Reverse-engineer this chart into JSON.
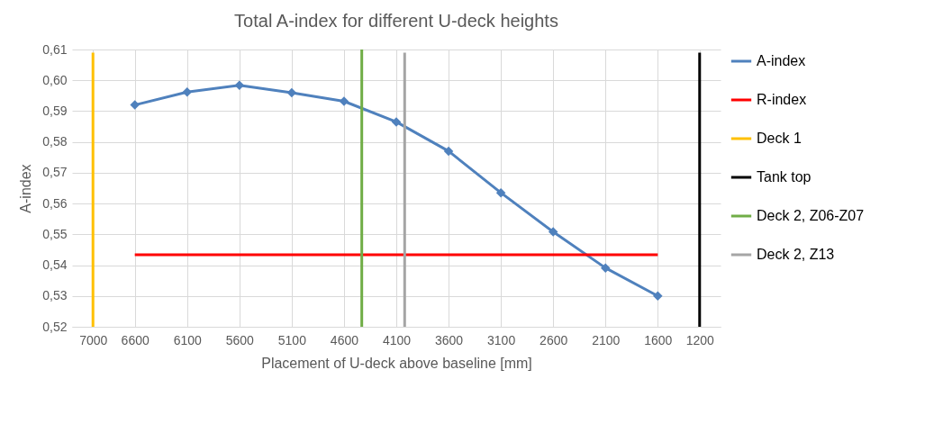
{
  "chart_data": {
    "type": "line",
    "title": "Total A-index for different U-deck heights",
    "xlabel": "Placement of U-deck above baseline [mm]",
    "ylabel": "A-index",
    "xlim": [
      7200,
      1000
    ],
    "xticks": [
      7000,
      6600,
      6100,
      5600,
      5100,
      4600,
      4100,
      3600,
      3100,
      2600,
      2100,
      1600,
      1200
    ],
    "ylim": [
      0.52,
      0.61
    ],
    "yticks": [
      {
        "value": 0.52,
        "label": "0,52"
      },
      {
        "value": 0.53,
        "label": "0,53"
      },
      {
        "value": 0.54,
        "label": "0,54"
      },
      {
        "value": 0.55,
        "label": "0,55"
      },
      {
        "value": 0.56,
        "label": "0,56"
      },
      {
        "value": 0.57,
        "label": "0,57"
      },
      {
        "value": 0.58,
        "label": "0,58"
      },
      {
        "value": 0.59,
        "label": "0,59"
      },
      {
        "value": 0.6,
        "label": "0,60"
      },
      {
        "value": 0.61,
        "label": "0,61"
      }
    ],
    "grid": true,
    "legend": "right",
    "series": [
      {
        "name": "A-index",
        "color": "#4f81bd",
        "marker": "diamond",
        "x": [
          6600,
          6100,
          5600,
          5100,
          4600,
          4100,
          3600,
          3100,
          2600,
          2100,
          1600
        ],
        "values": [
          0.592,
          0.5962,
          0.5984,
          0.596,
          0.5932,
          0.5865,
          0.577,
          0.5635,
          0.5508,
          0.5391,
          0.53
        ]
      },
      {
        "name": "R-index",
        "color": "#ff0000",
        "x": [
          6600,
          1600
        ],
        "values": [
          0.5434,
          0.5434
        ]
      },
      {
        "name": "Deck 1",
        "color": "#ffc000",
        "x": [
          7000,
          7000
        ],
        "values": [
          0.52,
          0.609
        ]
      },
      {
        "name": "Tank top",
        "color": "#000000",
        "x": [
          1200,
          1200
        ],
        "values": [
          0.52,
          0.609
        ]
      },
      {
        "name": "Deck 2, Z06-Z07",
        "color": "#70ad47",
        "x": [
          4430,
          4430
        ],
        "values": [
          0.52,
          0.61
        ]
      },
      {
        "name": "Deck 2, Z13",
        "color": "#a5a5a5",
        "x": [
          4020,
          4020
        ],
        "values": [
          0.52,
          0.609
        ]
      }
    ]
  }
}
